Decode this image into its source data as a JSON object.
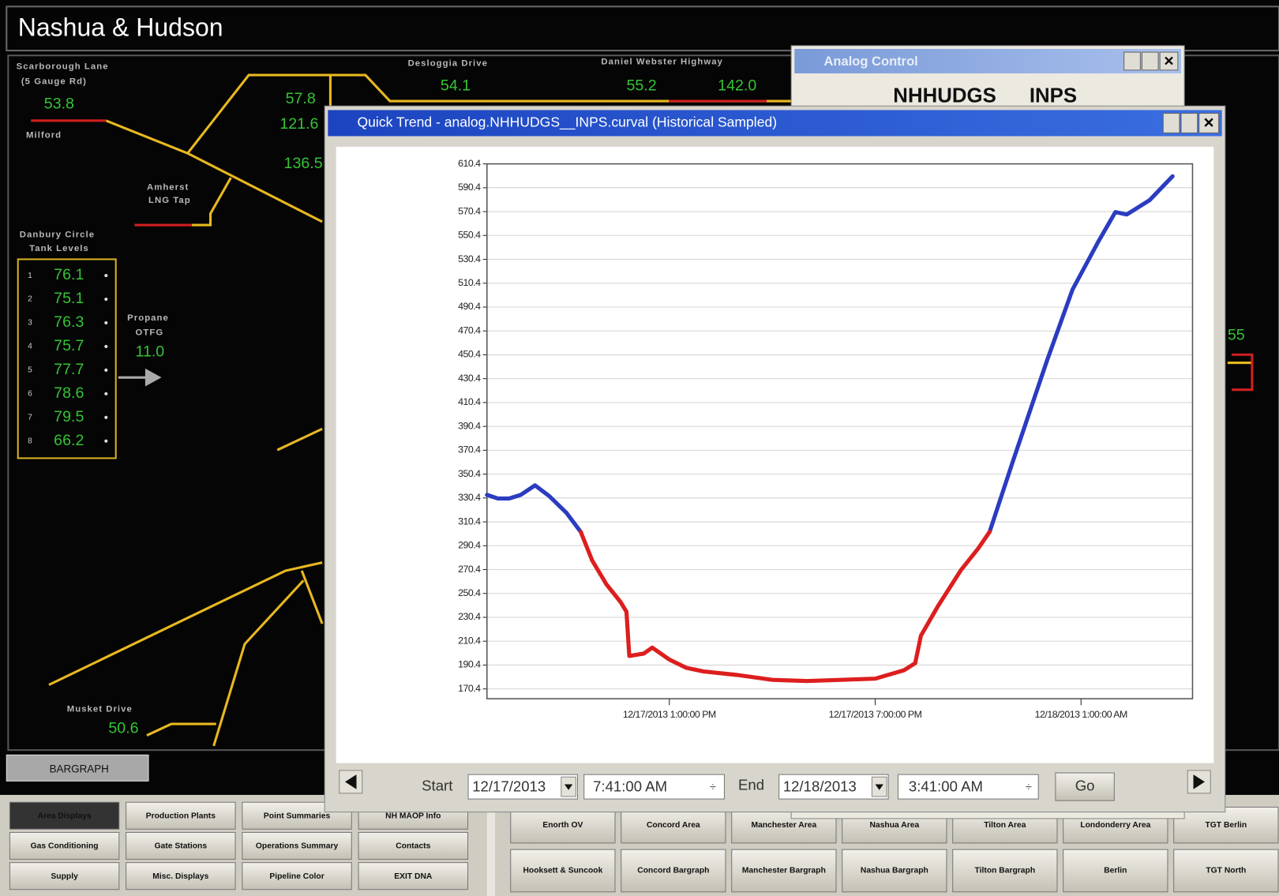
{
  "header": {
    "title": "Nashua & Hudson"
  },
  "schematic": {
    "labels": [
      "Scarborough Lane",
      "(5 Gauge Rd)",
      "Milford",
      "Desloggia Drive",
      "Daniel Webster Highway",
      "Amherst",
      "LNG Tap",
      "Danbury Circle",
      "Tank Levels",
      "Propane",
      "OTFG",
      "Musket Drive"
    ],
    "readouts": [
      "53.8",
      "54.1",
      "55.2",
      "142.0",
      "57.8",
      "121.6",
      "136.5",
      "11.0",
      "50.6",
      "55"
    ]
  },
  "tanks": {
    "numbers": [
      "1",
      "2",
      "3",
      "4",
      "5",
      "6",
      "7",
      "8"
    ],
    "levels": [
      "76.1",
      "75.1",
      "76.3",
      "75.7",
      "77.7",
      "78.6",
      "79.5",
      "66.2"
    ]
  },
  "bargraph_button": "BARGRAPH",
  "analog_control": {
    "title": "Analog Control",
    "point": "NHHUDGS",
    "attribute": "INPS"
  },
  "quick_trend": {
    "title": "Quick Trend - analog.NHHUDGS__INPS.curval (Historical Sampled)",
    "start_label": "Start",
    "start_date": "12/17/2013",
    "start_time": "7:41:00 AM",
    "end_label": "End",
    "end_date": "12/18/2013",
    "end_time": "3:41:00 AM",
    "go": "Go"
  },
  "chart_data": {
    "type": "line",
    "x": [
      "2013-12-17T07:41",
      "2013-12-17T08:00",
      "2013-12-17T08:20",
      "2013-12-17T08:40",
      "2013-12-17T09:05",
      "2013-12-17T09:30",
      "2013-12-17T10:00",
      "2013-12-17T10:25",
      "2013-12-17T10:45",
      "2013-12-17T11:10",
      "2013-12-17T11:35",
      "2013-12-17T11:45",
      "2013-12-17T11:50",
      "2013-12-17T12:15",
      "2013-12-17T12:30",
      "2013-12-17T13:00",
      "2013-12-17T13:30",
      "2013-12-17T14:00",
      "2013-12-17T15:00",
      "2013-12-17T16:00",
      "2013-12-17T17:00",
      "2013-12-17T18:00",
      "2013-12-17T19:00",
      "2013-12-17T19:50",
      "2013-12-17T20:10",
      "2013-12-17T20:20",
      "2013-12-17T20:50",
      "2013-12-17T21:30",
      "2013-12-17T22:00",
      "2013-12-17T22:20",
      "2013-12-17T23:00",
      "2013-12-18T00:00",
      "2013-12-18T00:45",
      "2013-12-18T01:30",
      "2013-12-18T02:00",
      "2013-12-18T02:20",
      "2013-12-18T03:00",
      "2013-12-18T03:40"
    ],
    "series": [
      {
        "color": "#2a3cc0",
        "values": [
          333,
          330,
          330,
          333,
          341,
          332,
          318,
          302,
          null,
          null,
          null,
          null,
          null,
          null,
          null,
          null,
          null,
          null,
          null,
          null,
          null,
          null,
          null,
          null,
          null,
          null,
          null,
          null,
          null,
          302,
          360,
          445,
          505,
          545,
          570,
          568,
          580,
          600
        ]
      },
      {
        "color": "#dd1e1e",
        "values": [
          null,
          null,
          null,
          null,
          null,
          null,
          null,
          302,
          278,
          258,
          243,
          235,
          198,
          200,
          205,
          195,
          188,
          185,
          182,
          178,
          177,
          178,
          179,
          186,
          192,
          215,
          240,
          270,
          288,
          302,
          null,
          null,
          null,
          null,
          null,
          null,
          null,
          null
        ]
      }
    ],
    "xlim": [
      "2013-12-17T07:41",
      "2013-12-18T04:15"
    ],
    "xticks": [
      {
        "value": "2013-12-17T13:00",
        "label": "12/17/2013 1:00:00 PM"
      },
      {
        "value": "2013-12-17T19:00",
        "label": "12/17/2013 7:00:00 PM"
      },
      {
        "value": "2013-12-18T01:00",
        "label": "12/18/2013 1:00:00 AM"
      }
    ],
    "ylim": [
      162.2,
      610.4
    ],
    "yticks": [
      170.4,
      190.4,
      210.4,
      230.4,
      250.4,
      270.4,
      290.4,
      310.4,
      330.4,
      350.4,
      370.4,
      390.4,
      410.4,
      430.4,
      450.4,
      470.4,
      490.4,
      510.4,
      530.4,
      550.4,
      570.4,
      590.4,
      610.4
    ],
    "grid": true
  },
  "nav": {
    "left": [
      "Area Displays",
      "Production Plants",
      "Point Summaries",
      "NH MAOP Info",
      "Gas Conditioning",
      "Gate Stations",
      "Operations Summary",
      "Contacts",
      "Supply",
      "Misc. Displays",
      "Pipeline Color",
      "EXIT DNA"
    ],
    "right": [
      "Enorth OV",
      "Concord Area",
      "Manchester Area",
      "Nashua Area",
      "Tilton Area",
      "Londonderry Area",
      "TGT Berlin",
      "Hooksett & Suncook",
      "Concord Bargraph",
      "Manchester Bargraph",
      "Nashua Bargraph",
      "Tilton Bargraph",
      "Berlin",
      "TGT North"
    ]
  }
}
